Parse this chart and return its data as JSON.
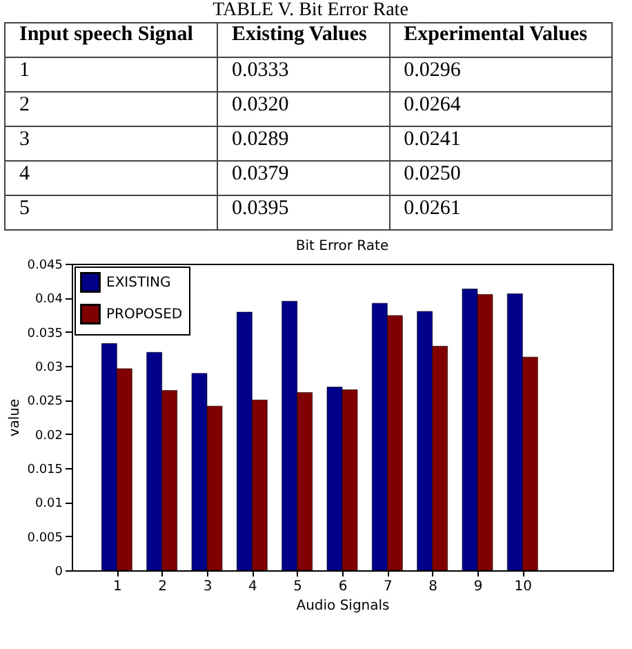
{
  "chart_data": [
    {
      "type": "heatmap",
      "title": "TABLE V. Bit Error Rate",
      "ylabel": "Input speech Signal",
      "categories": [
        "Existing Values",
        "Experimental Values"
      ],
      "y_categories": [
        "1",
        "2",
        "3",
        "4",
        "5"
      ],
      "cells": [
        [
          0.0333,
          0.0296
        ],
        [
          0.032,
          0.0264
        ],
        [
          0.0289,
          0.0241
        ],
        [
          0.0379,
          0.025
        ],
        [
          0.0395,
          0.0261
        ]
      ],
      "cell_labels": [
        [
          "0.0333",
          "0.0296"
        ],
        [
          "0.0320",
          "0.0264"
        ],
        [
          "0.0289",
          "0.0241"
        ],
        [
          "0.0379",
          "0.0250"
        ],
        [
          "0.0395",
          "0.0261"
        ]
      ]
    },
    {
      "type": "bar",
      "title": "Bit Error Rate",
      "xlabel": "Audio Signals",
      "ylabel": "value",
      "x": [
        1,
        2,
        3,
        4,
        5,
        6,
        7,
        8,
        9,
        10
      ],
      "xlim": [
        0,
        12
      ],
      "xticks": [
        1,
        2,
        3,
        4,
        5,
        6,
        7,
        8,
        9,
        10
      ],
      "ylim": [
        0,
        0.045
      ],
      "yticks": [
        0,
        0.005,
        0.01,
        0.015,
        0.02,
        0.025,
        0.03,
        0.035,
        0.04,
        0.045
      ],
      "legend": "top left",
      "series": [
        {
          "name": "EXISTING",
          "color": "#00008b",
          "values": [
            0.0333,
            0.032,
            0.0289,
            0.0379,
            0.0395,
            0.0269,
            0.0392,
            0.038,
            0.0413,
            0.0406
          ]
        },
        {
          "name": "PROPOSED",
          "color": "#800000",
          "values": [
            0.0296,
            0.0264,
            0.0241,
            0.025,
            0.0261,
            0.0265,
            0.0374,
            0.0329,
            0.0405,
            0.0313
          ]
        }
      ]
    }
  ]
}
